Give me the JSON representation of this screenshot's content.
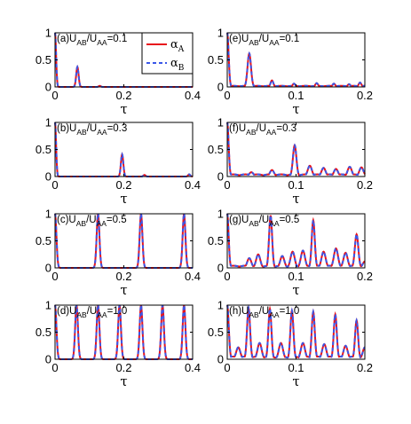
{
  "figure": {
    "legend": {
      "entries": [
        {
          "label": "αA",
          "symbol": "α",
          "subscript": "A",
          "color": "#e8141c",
          "dash": "solid"
        },
        {
          "label": "αB",
          "symbol": "α",
          "subscript": "B",
          "color": "#3a57e8",
          "dash": "dashed"
        }
      ]
    }
  },
  "chart_data": [
    {
      "id": "a",
      "type": "line",
      "label_text": "(a)U",
      "sub1": "AB",
      "mid": "/U",
      "sub2": "AA",
      "tail": "=0.1",
      "xlabel": "τ",
      "xlim": [
        0,
        0.4
      ],
      "ylim": [
        0,
        1
      ],
      "xticks": [
        0,
        0.2,
        0.4
      ],
      "xticklabels": [
        "0",
        "0.2",
        "0.4"
      ],
      "yticks": [
        0,
        0.5,
        1
      ],
      "yticklabels": [
        "0",
        "0.5",
        "1"
      ],
      "baseline": 0.0,
      "peaks": [
        [
          0,
          1.0,
          0.003
        ],
        [
          0.065,
          0.37,
          0.0035
        ],
        [
          0.13,
          0.02,
          0.003
        ]
      ],
      "series": [
        {
          "name": "αA"
        },
        {
          "name": "αB"
        }
      ]
    },
    {
      "id": "b",
      "type": "line",
      "label_text": "(b)U",
      "sub1": "AB",
      "mid": "/U",
      "sub2": "AA",
      "tail": "=0.3",
      "xlabel": "τ",
      "xlim": [
        0,
        0.4
      ],
      "ylim": [
        0,
        1
      ],
      "xticks": [
        0,
        0.2,
        0.4
      ],
      "xticklabels": [
        "0",
        "0.2",
        "0.4"
      ],
      "yticks": [
        0,
        0.5,
        1
      ],
      "yticklabels": [
        "0",
        "0.5",
        "1"
      ],
      "baseline": 0.0,
      "peaks": [
        [
          0,
          1.0,
          0.003
        ],
        [
          0.195,
          0.41,
          0.0035
        ],
        [
          0.26,
          0.03,
          0.003
        ],
        [
          0.39,
          0.04,
          0.003
        ]
      ],
      "series": [
        {
          "name": "αA"
        },
        {
          "name": "αB"
        }
      ]
    },
    {
      "id": "c",
      "type": "line",
      "label_text": "(c)U",
      "sub1": "AB",
      "mid": "/U",
      "sub2": "AA",
      "tail": "=0.5",
      "xlabel": "τ",
      "xlim": [
        0,
        0.4
      ],
      "ylim": [
        0,
        1
      ],
      "xticks": [
        0,
        0.2,
        0.4
      ],
      "xticklabels": [
        "0",
        "0.2",
        "0.4"
      ],
      "yticks": [
        0,
        0.5,
        1
      ],
      "yticklabels": [
        "0",
        "0.5",
        "1"
      ],
      "baseline": 0.0,
      "peaks": [
        [
          0,
          1.0,
          0.004
        ],
        [
          0.125,
          1.0,
          0.004
        ],
        [
          0.25,
          1.0,
          0.004
        ],
        [
          0.375,
          1.0,
          0.004
        ]
      ],
      "series": [
        {
          "name": "αA"
        },
        {
          "name": "αB"
        }
      ]
    },
    {
      "id": "d",
      "type": "line",
      "label_text": "(d)U",
      "sub1": "AB",
      "mid": "/U",
      "sub2": "AA",
      "tail": "=1.0",
      "xlabel": "τ",
      "xlim": [
        0,
        0.4
      ],
      "ylim": [
        0,
        1
      ],
      "xticks": [
        0,
        0.2,
        0.4
      ],
      "xticklabels": [
        "0",
        "0.2",
        "0.4"
      ],
      "yticks": [
        0,
        0.5,
        1
      ],
      "yticklabels": [
        "0",
        "0.5",
        "1"
      ],
      "baseline": 0.0,
      "peaks": [
        [
          0,
          1.0,
          0.004
        ],
        [
          0.0625,
          1.0,
          0.004
        ],
        [
          0.125,
          1.0,
          0.004
        ],
        [
          0.1875,
          1.0,
          0.004
        ],
        [
          0.25,
          1.0,
          0.004
        ],
        [
          0.3125,
          1.0,
          0.004
        ],
        [
          0.375,
          1.0,
          0.004
        ]
      ],
      "series": [
        {
          "name": "αA"
        },
        {
          "name": "αB"
        }
      ]
    },
    {
      "id": "e",
      "type": "line",
      "label_text": "(e)U",
      "sub1": "AB",
      "mid": "/U",
      "sub2": "AA",
      "tail": "=0.1",
      "xlabel": "τ",
      "xlim": [
        0,
        0.2
      ],
      "ylim": [
        0,
        1
      ],
      "xticks": [
        0,
        0.1,
        0.2
      ],
      "xticklabels": [
        "0",
        "0.1",
        "0.2"
      ],
      "yticks": [
        0,
        0.5,
        1
      ],
      "yticklabels": [
        "0",
        "0.5",
        "1"
      ],
      "baseline": 0.02,
      "peaks": [
        [
          0,
          1.0,
          0.002
        ],
        [
          0.032,
          0.62,
          0.0025
        ],
        [
          0.065,
          0.12,
          0.002
        ],
        [
          0.097,
          0.06,
          0.002
        ],
        [
          0.13,
          0.07,
          0.002
        ],
        [
          0.155,
          0.06,
          0.002
        ],
        [
          0.177,
          0.05,
          0.002
        ],
        [
          0.193,
          0.08,
          0.002
        ]
      ],
      "series": [
        {
          "name": "αA"
        },
        {
          "name": "αB"
        }
      ]
    },
    {
      "id": "f",
      "type": "line",
      "label_text": "(f)U",
      "sub1": "AB",
      "mid": "/U",
      "sub2": "AA",
      "tail": "=0.3",
      "xlabel": "τ",
      "xlim": [
        0,
        0.2
      ],
      "ylim": [
        0,
        1
      ],
      "xticks": [
        0,
        0.1,
        0.2
      ],
      "xticklabels": [
        "0",
        "0.1",
        "0.2"
      ],
      "yticks": [
        0,
        0.5,
        1
      ],
      "yticklabels": [
        "0",
        "0.5",
        "1"
      ],
      "baseline": 0.04,
      "peaks": [
        [
          0,
          1.0,
          0.002
        ],
        [
          0.035,
          0.08,
          0.003
        ],
        [
          0.065,
          0.12,
          0.003
        ],
        [
          0.098,
          0.58,
          0.0025
        ],
        [
          0.12,
          0.2,
          0.003
        ],
        [
          0.14,
          0.16,
          0.003
        ],
        [
          0.158,
          0.14,
          0.003
        ],
        [
          0.178,
          0.18,
          0.003
        ],
        [
          0.195,
          0.17,
          0.003
        ]
      ],
      "series": [
        {
          "name": "αA"
        },
        {
          "name": "αB"
        }
      ]
    },
    {
      "id": "g",
      "type": "line",
      "label_text": "(g)U",
      "sub1": "AB",
      "mid": "/U",
      "sub2": "AA",
      "tail": "=0.5",
      "xlabel": "τ",
      "xlim": [
        0,
        0.2
      ],
      "ylim": [
        0,
        1
      ],
      "xticks": [
        0,
        0.1,
        0.2
      ],
      "xticklabels": [
        "0",
        "0.1",
        "0.2"
      ],
      "yticks": [
        0,
        0.5,
        1
      ],
      "yticklabels": [
        "0",
        "0.5",
        "1"
      ],
      "baseline": 0.04,
      "peaks": [
        [
          0,
          1.0,
          0.002
        ],
        [
          0.032,
          0.18,
          0.003
        ],
        [
          0.045,
          0.25,
          0.003
        ],
        [
          0.063,
          0.97,
          0.0022
        ],
        [
          0.08,
          0.22,
          0.003
        ],
        [
          0.095,
          0.3,
          0.003
        ],
        [
          0.11,
          0.32,
          0.003
        ],
        [
          0.125,
          0.88,
          0.0022
        ],
        [
          0.14,
          0.3,
          0.003
        ],
        [
          0.158,
          0.36,
          0.003
        ],
        [
          0.172,
          0.28,
          0.003
        ],
        [
          0.188,
          0.62,
          0.0025
        ],
        [
          0.2,
          0.12,
          0.003
        ]
      ],
      "series": [
        {
          "name": "αA"
        },
        {
          "name": "αB"
        }
      ]
    },
    {
      "id": "h",
      "type": "line",
      "label_text": "(h)U",
      "sub1": "AB",
      "mid": "/U",
      "sub2": "AA",
      "tail": "=1.0",
      "xlabel": "τ",
      "xlim": [
        0,
        0.2
      ],
      "ylim": [
        0,
        1
      ],
      "xticks": [
        0,
        0.1,
        0.2
      ],
      "xticklabels": [
        "0",
        "0.1",
        "0.2"
      ],
      "yticks": [
        0,
        0.5,
        1
      ],
      "yticklabels": [
        "0",
        "0.5",
        "1"
      ],
      "baseline": 0.05,
      "peaks": [
        [
          0,
          1.0,
          0.0022
        ],
        [
          0.016,
          0.22,
          0.003
        ],
        [
          0.031,
          0.95,
          0.0022
        ],
        [
          0.047,
          0.3,
          0.003
        ],
        [
          0.062,
          0.93,
          0.0022
        ],
        [
          0.078,
          0.3,
          0.003
        ],
        [
          0.094,
          0.9,
          0.0022
        ],
        [
          0.11,
          0.3,
          0.003
        ],
        [
          0.125,
          0.88,
          0.0022
        ],
        [
          0.141,
          0.28,
          0.003
        ],
        [
          0.157,
          0.83,
          0.0022
        ],
        [
          0.172,
          0.25,
          0.003
        ],
        [
          0.188,
          0.72,
          0.0022
        ],
        [
          0.2,
          0.22,
          0.003
        ]
      ],
      "series": [
        {
          "name": "αA"
        },
        {
          "name": "αB"
        }
      ]
    }
  ]
}
